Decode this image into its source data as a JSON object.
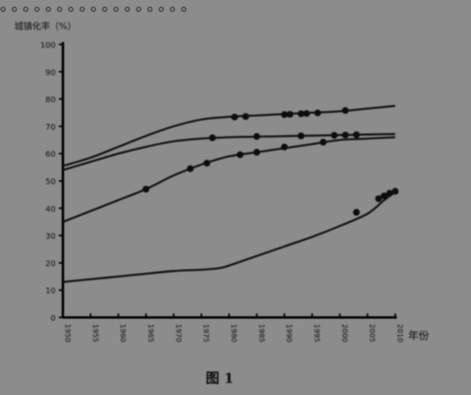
{
  "header_fragment": "。。。。。。。。。。。。。。。。。",
  "chart_data": {
    "type": "line",
    "title": "",
    "ylabel": "城镇化率（%）",
    "xlabel": "年份",
    "caption": "图 1",
    "ylim": [
      0,
      100
    ],
    "xlim": [
      1950,
      2010
    ],
    "y_ticks": [
      0,
      10,
      20,
      30,
      40,
      50,
      60,
      70,
      80,
      90,
      100
    ],
    "y_tick_labels": [
      "0",
      "10",
      "20",
      "30",
      "40",
      "50",
      "60",
      "70",
      "80",
      "90",
      "100"
    ],
    "x_ticks": [
      1950,
      1955,
      1960,
      1965,
      1970,
      1975,
      1980,
      1985,
      1990,
      1995,
      2000,
      2005,
      2010
    ],
    "x_tick_labels": [
      "1950",
      "1955",
      "1960",
      "1965",
      "1970",
      "1975",
      "1980",
      "1985",
      "1990",
      "1995",
      "2000",
      "2005",
      "2010"
    ],
    "grid": false,
    "series": [
      {
        "x": [
          1950,
          1955,
          1960,
          1965,
          1970,
          1975,
          1980,
          1985,
          1990,
          1995,
          2000,
          2005,
          2010
        ],
        "y": [
          55.5,
          58.5,
          62.5,
          66.5,
          70,
          72.5,
          73.5,
          74,
          74.5,
          75,
          75.5,
          76.5,
          77.5
        ],
        "markers_x": [
          1981,
          1983,
          1990,
          1991,
          1993,
          1994,
          1996,
          2001
        ],
        "markers_y": [
          73.4,
          73.6,
          74.3,
          74.4,
          74.6,
          74.7,
          74.9,
          75.8
        ]
      },
      {
        "x": [
          1950,
          1955,
          1960,
          1965,
          1970,
          1975,
          1980,
          1985,
          1990,
          1995,
          2000,
          2005,
          2010
        ],
        "y": [
          54,
          57,
          60,
          62.5,
          64.5,
          65.5,
          66,
          66.2,
          66.4,
          66.6,
          66.8,
          67,
          67.2
        ],
        "markers_x": [
          1977,
          1985,
          1993,
          1999,
          2001,
          2003
        ],
        "markers_y": [
          65.8,
          66.3,
          66.5,
          66.7,
          66.8,
          66.9
        ]
      },
      {
        "x": [
          1950,
          1955,
          1960,
          1965,
          1970,
          1975,
          1980,
          1985,
          1990,
          1995,
          2000,
          2005,
          2010
        ],
        "y": [
          35,
          39,
          43,
          47,
          52,
          56,
          59,
          60.5,
          62,
          63.5,
          65,
          65.5,
          66
        ],
        "markers_x": [
          1965,
          1973,
          1976,
          1982,
          1985,
          1990,
          1997
        ],
        "markers_y": [
          47,
          54.5,
          56.5,
          59.6,
          60.5,
          62.4,
          64.2
        ]
      },
      {
        "x": [
          1950,
          1955,
          1960,
          1965,
          1970,
          1975,
          1978,
          1980,
          1985,
          1990,
          1995,
          2000,
          2005,
          2008,
          2010
        ],
        "y": [
          13,
          14,
          15,
          16,
          17,
          17.5,
          18,
          19,
          22.5,
          26,
          29.5,
          33.5,
          38,
          43,
          46
        ],
        "markers_x": [
          2003,
          2007,
          2008,
          2009,
          2010
        ],
        "markers_y": [
          38.5,
          43.5,
          44.5,
          45.5,
          46.2
        ]
      }
    ]
  }
}
